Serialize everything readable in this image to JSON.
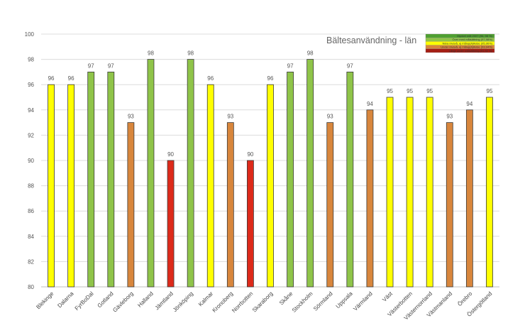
{
  "chart_data": {
    "type": "bar",
    "title": "Bältesanvändning - län",
    "xlabel": "",
    "ylabel": "",
    "ylim": [
      80,
      100
    ],
    "yticks": [
      80,
      82,
      84,
      86,
      88,
      90,
      92,
      94,
      96,
      98,
      100
    ],
    "grid": true,
    "legend_position": "top-right",
    "categories": [
      "Blekinge",
      "Dalarna",
      "FyrBoDal",
      "Gotland",
      "Gävleborg",
      "Halland",
      "Jämtland",
      "Jönköping",
      "Kalmar",
      "Kronoberg",
      "Norrbotten",
      "Skaraborg",
      "Skåne",
      "Stockholm",
      "Sörmland",
      "Uppsala",
      "Värmland",
      "Väst",
      "Västerbotten",
      "Västernorrland",
      "Västmanland",
      "Örebro",
      "Östergötland"
    ],
    "values": [
      96,
      96,
      97,
      97,
      93,
      98,
      90,
      98,
      96,
      93,
      90,
      96,
      97,
      98,
      93,
      97,
      94,
      95,
      95,
      95,
      93,
      94,
      95
    ],
    "bar_classes": [
      "yellow",
      "yellow",
      "green",
      "green",
      "orange",
      "green",
      "red",
      "green",
      "yellow",
      "orange",
      "red",
      "yellow",
      "green",
      "green",
      "orange",
      "green",
      "orange",
      "yellow",
      "yellow",
      "yellow",
      "orange",
      "orange",
      "yellow"
    ],
    "colors": {
      "darkgreen": "#4fa032",
      "green": "#8fc449",
      "yellow": "#ffff00",
      "orange": "#d8863c",
      "red": "#dd2a1a",
      "darkred": "#a51e14"
    },
    "legend": [
      {
        "label": "Mycket mål 2007 (96, 98 %)",
        "class": "darkgreen"
      },
      {
        "label": "Över med målsättning (97,98%)",
        "class": "green"
      },
      {
        "label": "Nära nivavå, ej måluppfyllelse (95,96%)",
        "class": "yellow"
      },
      {
        "label": "Under nivavå, ej måluppfyllelse (93,94%)",
        "class": "orange"
      },
      {
        "label": "Långt under målsättning (91,92 %)",
        "class": "darkred"
      }
    ]
  }
}
